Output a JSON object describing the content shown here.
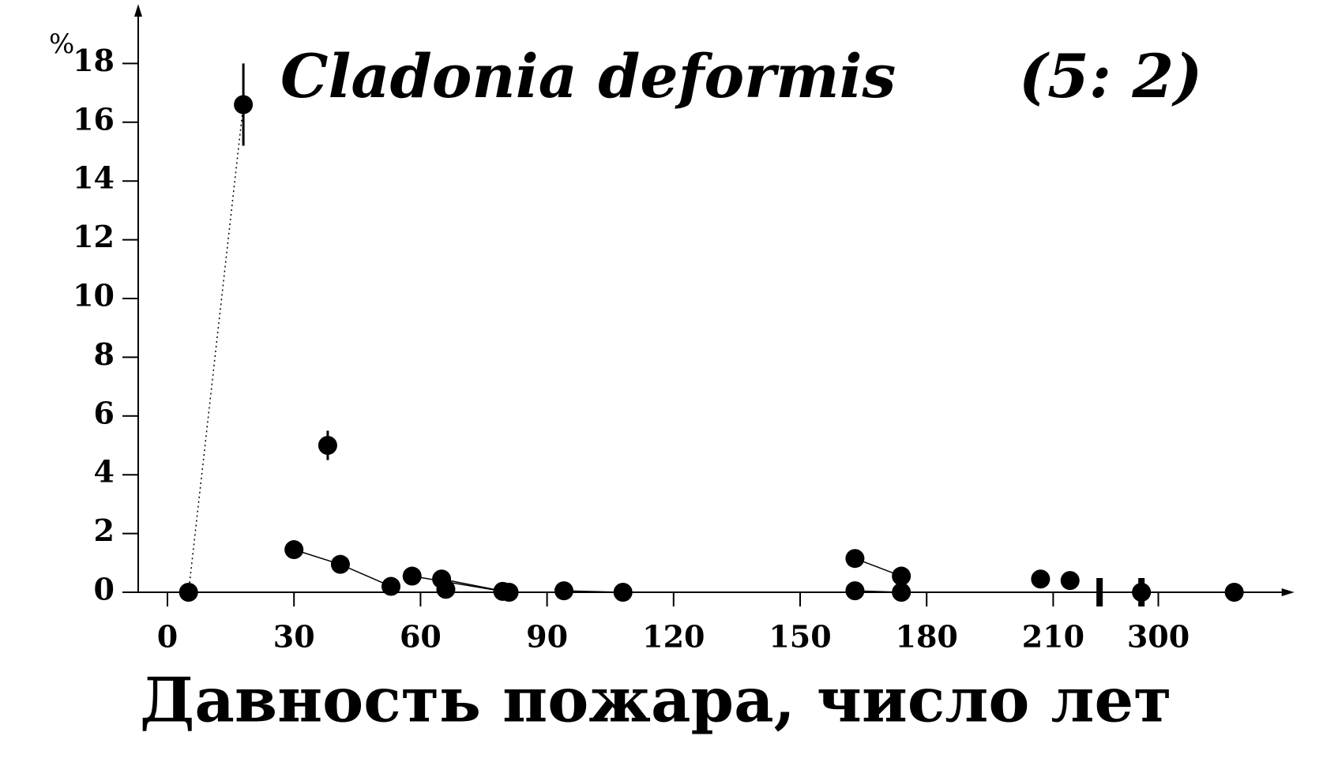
{
  "chart_data": {
    "type": "scatter",
    "title": "Cladonia deformis",
    "subtitle": "(5: 2)",
    "y_label": "%",
    "x_label": "Давность пожара, число лет",
    "xlim": [
      -7,
      330
    ],
    "xbreak": [
      221,
      296
    ],
    "ylim": [
      0,
      19.7
    ],
    "xticks": [
      0,
      30,
      60,
      90,
      120,
      150,
      180,
      210,
      300
    ],
    "yticks": [
      0,
      2,
      4,
      6,
      8,
      10,
      12,
      14,
      16,
      18
    ],
    "color": "#000000",
    "groups": [
      {
        "dotted": true,
        "x": [
          5,
          18
        ],
        "y": [
          0,
          16.6
        ],
        "errors": [
          null,
          1.4
        ]
      },
      {
        "x": [
          30,
          41,
          53
        ],
        "y": [
          1.45,
          0.95,
          0.2
        ],
        "errors": [
          0.3,
          null,
          null
        ]
      },
      {
        "x": [
          38
        ],
        "y": [
          5.0
        ],
        "errors": [
          0.5
        ]
      },
      {
        "x": [
          58,
          79.5
        ],
        "y": [
          0.55,
          0.03
        ]
      },
      {
        "x": [
          65,
          81
        ],
        "y": [
          0.45,
          0
        ]
      },
      {
        "x": [
          66
        ],
        "y": [
          0.1
        ]
      },
      {
        "x": [
          94,
          108
        ],
        "y": [
          0.05,
          0
        ]
      },
      {
        "x": [
          163,
          174
        ],
        "y": [
          1.15,
          0.55
        ]
      },
      {
        "x": [
          163,
          174
        ],
        "y": [
          0.05,
          0
        ]
      },
      {
        "x": [
          207
        ],
        "y": [
          0.45
        ]
      },
      {
        "x": [
          214
        ],
        "y": [
          0.4
        ]
      },
      {
        "x": [
          296,
          318
        ],
        "y": [
          0,
          0
        ]
      }
    ]
  }
}
